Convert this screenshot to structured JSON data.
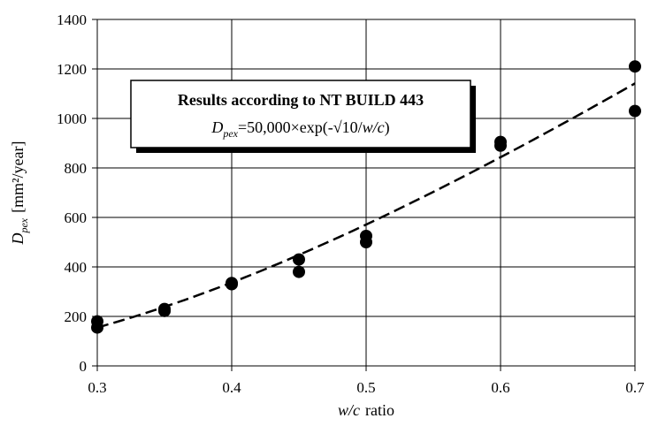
{
  "chart_data": {
    "type": "scatter",
    "xlabel": {
      "var": "w/c",
      "suffix": "ratio"
    },
    "ylabel": {
      "var": "D",
      "sub": "pex",
      "unit": "[mm²/year]"
    },
    "xlim": [
      0.3,
      0.7
    ],
    "ylim": [
      0,
      1400
    ],
    "xticks": [
      0.3,
      0.4,
      0.5,
      0.6,
      0.7
    ],
    "xtick_labels": [
      "0.3",
      "0.4",
      "0.5",
      "0.6",
      "0.7"
    ],
    "yticks": [
      0,
      200,
      400,
      600,
      800,
      1000,
      1200,
      1400
    ],
    "ytick_labels": [
      "0",
      "200",
      "400",
      "600",
      "800",
      "1000",
      "1200",
      "1400"
    ],
    "grid": true,
    "series": [
      {
        "marker": "filled-circle",
        "color": "#000000",
        "points": [
          {
            "x": 0.3,
            "y": 180
          },
          {
            "x": 0.3,
            "y": 155
          },
          {
            "x": 0.35,
            "y": 230
          },
          {
            "x": 0.35,
            "y": 222
          },
          {
            "x": 0.4,
            "y": 335
          },
          {
            "x": 0.4,
            "y": 330
          },
          {
            "x": 0.45,
            "y": 430
          },
          {
            "x": 0.45,
            "y": 380
          },
          {
            "x": 0.5,
            "y": 525
          },
          {
            "x": 0.5,
            "y": 500
          },
          {
            "x": 0.6,
            "y": 905
          },
          {
            "x": 0.6,
            "y": 890
          },
          {
            "x": 0.7,
            "y": 1210
          },
          {
            "x": 0.7,
            "y": 1030
          }
        ]
      }
    ],
    "trend_line": {
      "style": "dashed",
      "color": "#000000",
      "formula": "50000*exp(-sqrt(10/(w/c)))"
    },
    "annotation_box": {
      "title": "Results according to NT BUILD 443",
      "formula": {
        "var": "D",
        "sub": "pex",
        "expr": "=50,000×exp(-√10/",
        "expr_var": "w/c",
        "expr_end": ")"
      }
    }
  }
}
